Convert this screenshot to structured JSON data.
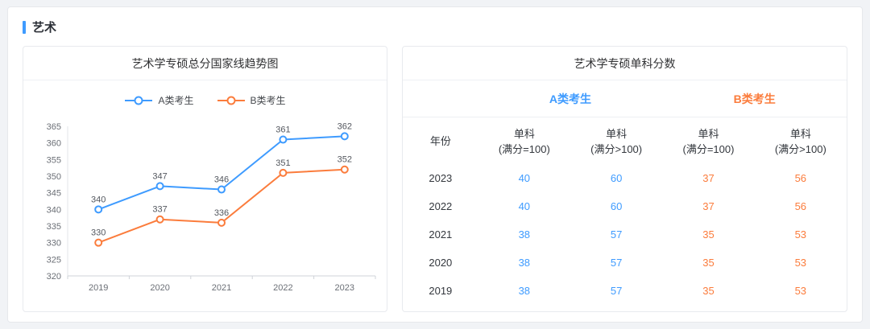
{
  "page": {
    "section_title": "艺术"
  },
  "accents": {
    "a_color": "#3e9bff",
    "b_color": "#fb7c3c"
  },
  "chart_panel": {
    "title": "艺术学专硕总分国家线趋势图"
  },
  "chart_data": {
    "type": "line",
    "title": "艺术学专硕总分国家线趋势图",
    "categories": [
      "2019",
      "2020",
      "2021",
      "2022",
      "2023"
    ],
    "series": [
      {
        "name": "A类考生",
        "color": "#3e9bff",
        "values": [
          340,
          347,
          346,
          361,
          362
        ]
      },
      {
        "name": "B类考生",
        "color": "#fb7c3c",
        "values": [
          330,
          337,
          336,
          351,
          352
        ]
      }
    ],
    "xlabel": "",
    "ylabel": "",
    "ylim": [
      320,
      365
    ],
    "ytick_step": 5,
    "grid": false,
    "legend_position": "top",
    "point_style": "open-circle",
    "data_labels": true
  },
  "table_panel": {
    "title": "艺术学专硕单科分数",
    "group_headers": [
      {
        "label": "A类考生"
      },
      {
        "label": "B类考生"
      }
    ],
    "year_header": "年份",
    "sub_headers": [
      {
        "line1": "单科",
        "line2": "(满分=100)"
      },
      {
        "line1": "单科",
        "line2": "(满分>100)"
      },
      {
        "line1": "单科",
        "line2": "(满分=100)"
      },
      {
        "line1": "单科",
        "line2": "(满分>100)"
      }
    ],
    "rows": [
      {
        "year": "2023",
        "values": [
          "40",
          "60",
          "37",
          "56"
        ]
      },
      {
        "year": "2022",
        "values": [
          "40",
          "60",
          "37",
          "56"
        ]
      },
      {
        "year": "2021",
        "values": [
          "38",
          "57",
          "35",
          "53"
        ]
      },
      {
        "year": "2020",
        "values": [
          "38",
          "57",
          "35",
          "53"
        ]
      },
      {
        "year": "2019",
        "values": [
          "38",
          "57",
          "35",
          "53"
        ]
      }
    ]
  }
}
